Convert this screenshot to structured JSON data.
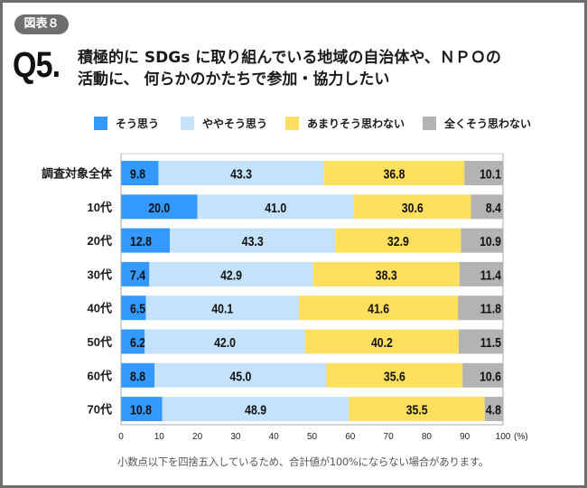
{
  "header": {
    "figure_badge": "図表８",
    "question_label": "Q5",
    "question_dot": ".",
    "question_line1": "積極的に SDGs に取り組んでいる地域の自治体や、ＮＰＯの",
    "question_line2": "活動に、 何らかのかたちで参加・協力したい"
  },
  "footnote": "小数点以下を四捨五入しているため、合計値が100%にならない場合があります。",
  "colors": {
    "strongly_agree": "#3399ff",
    "somewhat_agree": "#c4e2fb",
    "somewhat_disagree": "#ffdf5e",
    "strongly_disagree": "#b3b3b3",
    "frame": "#6e6e6e",
    "axis": "#aaaaaa"
  },
  "chart_data": {
    "type": "bar",
    "orientation": "horizontal",
    "stacked": true,
    "title": "積極的に SDGs に取り組んでいる地域の自治体や、ＮＰＯの活動に、何らかのかたちで参加・協力したい",
    "xlabel": "",
    "ylabel": "",
    "x_unit_label": "(%)",
    "xlim": [
      0,
      100
    ],
    "x_ticks": [
      0,
      10,
      20,
      30,
      40,
      50,
      60,
      70,
      80,
      90,
      100
    ],
    "grid": false,
    "legend_position": "top",
    "categories": [
      "調査対象全体",
      "10代",
      "20代",
      "30代",
      "40代",
      "50代",
      "60代",
      "70代"
    ],
    "series": [
      {
        "name": "そう思う",
        "color_key": "strongly_agree",
        "values": [
          9.8,
          20.0,
          12.8,
          7.4,
          6.5,
          6.2,
          8.8,
          10.8
        ]
      },
      {
        "name": "ややそう思う",
        "color_key": "somewhat_agree",
        "values": [
          43.3,
          41.0,
          43.3,
          42.9,
          40.1,
          42.0,
          45.0,
          48.9
        ]
      },
      {
        "name": "あまりそう思わない",
        "color_key": "somewhat_disagree",
        "values": [
          36.8,
          30.6,
          32.9,
          38.3,
          41.6,
          40.2,
          35.6,
          35.5
        ]
      },
      {
        "name": "全くそう思わない",
        "color_key": "strongly_disagree",
        "values": [
          10.1,
          8.4,
          10.9,
          11.4,
          11.8,
          11.5,
          10.6,
          4.8
        ]
      }
    ]
  }
}
